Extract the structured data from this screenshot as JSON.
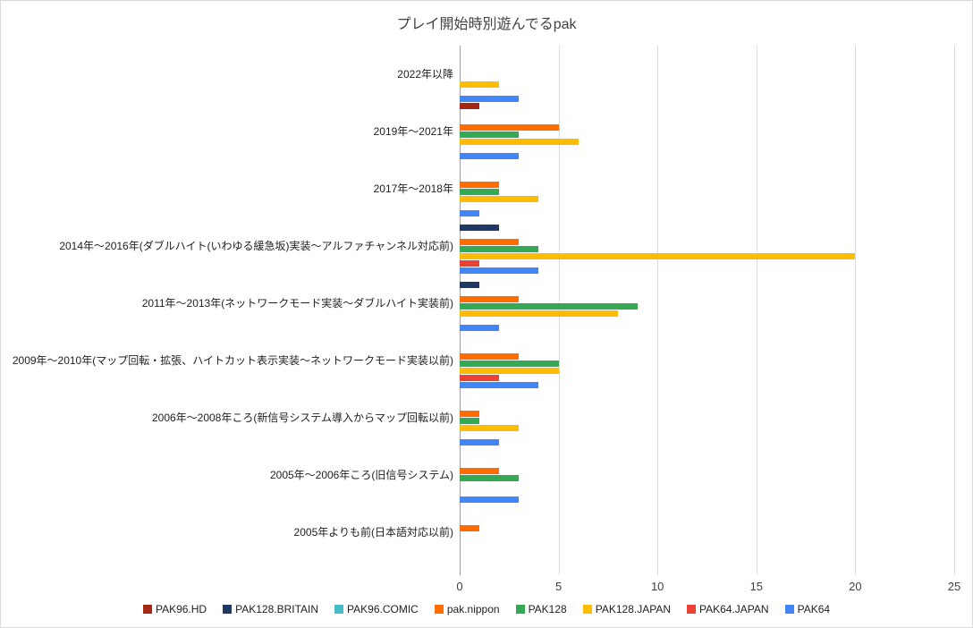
{
  "chart_data": {
    "type": "bar",
    "orientation": "horizontal",
    "title": "プレイ開始時別遊んでるpak",
    "xlabel": "",
    "ylabel": "",
    "xlim": [
      0,
      25
    ],
    "x_ticks": [
      0,
      5,
      10,
      15,
      20,
      25
    ],
    "grid": true,
    "legend_position": "bottom",
    "categories": [
      "2022年以降",
      "2019年〜2021年",
      "2017年〜2018年",
      "2014年〜2016年(ダブルハイト(いわゆる緩急坂)実装〜アルファチャンネル対応前)",
      "2011年〜2013年(ネットワークモード実装〜ダブルハイト実装前)",
      "2009年〜2010年(マップ回転・拡張、ハイトカット表示実装〜ネットワークモード実装以前)",
      "2006年〜2008年ころ(新信号システム導入からマップ回転以前)",
      "2005年〜2006年ころ(旧信号システム)",
      "2005年よりも前(日本語対応以前)"
    ],
    "series": [
      {
        "name": "PAK96.HD",
        "color": "#A52714",
        "values": [
          0,
          1,
          0,
          0,
          0,
          0,
          0,
          0,
          0
        ]
      },
      {
        "name": "PAK128.BRITAIN",
        "color": "#203864",
        "values": [
          0,
          0,
          0,
          2,
          1,
          0,
          0,
          0,
          0
        ]
      },
      {
        "name": "PAK96.COMIC",
        "color": "#46BDC6",
        "values": [
          0,
          0,
          0,
          0,
          0,
          0,
          0,
          0,
          0
        ]
      },
      {
        "name": "pak.nippon",
        "color": "#FF6D01",
        "values": [
          0,
          5,
          2,
          3,
          3,
          3,
          1,
          2,
          1
        ]
      },
      {
        "name": "PAK128",
        "color": "#34A853",
        "values": [
          0,
          3,
          2,
          4,
          9,
          5,
          1,
          3,
          0
        ]
      },
      {
        "name": "PAK128.JAPAN",
        "color": "#FBBC04",
        "values": [
          2,
          6,
          4,
          20,
          8,
          5,
          3,
          0,
          0
        ]
      },
      {
        "name": "PAK64.JAPAN",
        "color": "#EA4335",
        "values": [
          0,
          0,
          0,
          1,
          0,
          2,
          0,
          0,
          0
        ]
      },
      {
        "name": "PAK64",
        "color": "#4285F4",
        "values": [
          3,
          3,
          1,
          4,
          2,
          4,
          2,
          3,
          0
        ]
      }
    ]
  }
}
